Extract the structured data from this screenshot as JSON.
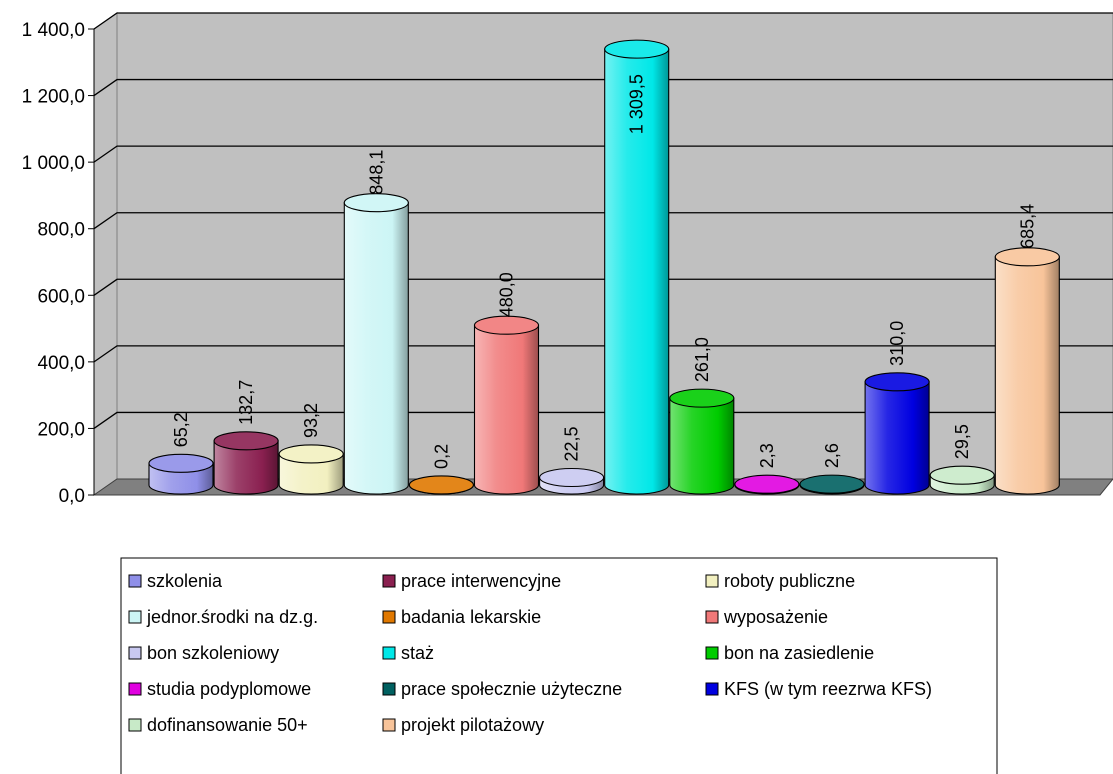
{
  "chart_data": {
    "type": "bar",
    "categories": [
      "szkolenia",
      "prace interwencyjne",
      "roboty publiczne",
      "jednor.środki na dz.g.",
      "badania lekarskie",
      "wyposażenie",
      "bon szkoleniowy",
      "staż",
      "bon na zasiedlenie",
      "studia podyplomowe",
      "prace społecznie użyteczne",
      "KFS (w tym reezrwa KFS)",
      "dofinansowanie 50+",
      "projekt pilotażowy"
    ],
    "values": [
      65.2,
      132.7,
      93.2,
      848.1,
      0.2,
      480.0,
      22.5,
      1309.5,
      261.0,
      2.3,
      2.6,
      310.0,
      29.5,
      685.4
    ],
    "value_labels": [
      "65,2",
      "132,7",
      "93,2",
      "848,1",
      "0,2",
      "480,0",
      "22,5",
      "1 309,5",
      "261,0",
      "2,3",
      "2,6",
      "310,0",
      "29,5",
      "685,4"
    ],
    "colors": [
      "#8f8fe8",
      "#8a2050",
      "#f2f0c0",
      "#ccf5f5",
      "#e07800",
      "#f07878",
      "#c8c8f0",
      "#00e8e8",
      "#00cc00",
      "#e000e0",
      "#006060",
      "#0000e0",
      "#c8eac8",
      "#f8c49a"
    ],
    "y_ticks": [
      0,
      200,
      400,
      600,
      800,
      1000,
      1200,
      1400
    ],
    "y_tick_labels": [
      "0,0",
      "200,0",
      "400,0",
      "600,0",
      "800,0",
      "1 000,0",
      "1 200,0",
      "1 400,0"
    ],
    "ylim": [
      0,
      1400
    ],
    "title": "",
    "xlabel": "",
    "ylabel": "",
    "grid": true,
    "legend_position": "bottom",
    "wall_color": "#c0c0c0",
    "floor_color": "#808080"
  }
}
